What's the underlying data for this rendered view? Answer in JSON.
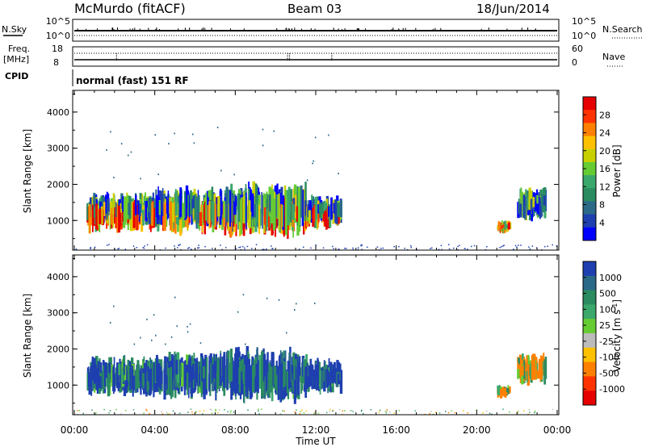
{
  "header": {
    "station": "McMurdo (fitACF)",
    "beam": "Beam 03",
    "date": "18/Jun/2014"
  },
  "top_panels": {
    "nsky_label": "N.Sky",
    "nsky_ticks": [
      "10^5",
      "10^0"
    ],
    "nsearch_label": "N.Search",
    "nsearch_ticks": [
      "10^5",
      "10^0"
    ],
    "freq_label": "Freq.",
    "freq_unit": "[MHz]",
    "freq_ticks": [
      "18",
      "8"
    ],
    "nave_label": "Nave",
    "nave_ticks": [
      "60",
      "0"
    ],
    "cpid_label": "CPID",
    "cpid_text": "normal (fast) 151 RF"
  },
  "chart_data": [
    {
      "type": "heatmap",
      "name": "power",
      "ylabel": "Slant Range [km]",
      "ylim": [
        180,
        4600
      ],
      "yticks": [
        1000,
        2000,
        3000,
        4000
      ],
      "xlim": [
        0,
        24
      ],
      "colorbar": {
        "label": "Power [dB]",
        "ticks": [
          "28",
          "24",
          "20",
          "16",
          "12",
          "8",
          "4"
        ],
        "colors": [
          "#e60000",
          "#ff3300",
          "#ff8000",
          "#ffc000",
          "#c8d000",
          "#66cc33",
          "#3aa86a",
          "#2a8a60",
          "#2a6a88",
          "#1e3fb0",
          "#0000ff"
        ]
      },
      "patches": [
        {
          "t0": 0.6,
          "t1": 4.0,
          "r0": 700,
          "r1": 1800,
          "level": "mixed"
        },
        {
          "t0": 4.0,
          "t1": 7.5,
          "r0": 650,
          "r1": 1900,
          "level": "mixed"
        },
        {
          "t0": 7.5,
          "t1": 11.5,
          "r0": 550,
          "r1": 2000,
          "level": "mixed"
        },
        {
          "t0": 11.5,
          "t1": 13.2,
          "r0": 800,
          "r1": 1700,
          "level": "mixed"
        },
        {
          "t0": 21.0,
          "t1": 21.6,
          "r0": 650,
          "r1": 1000,
          "level": "mixed"
        },
        {
          "t0": 22.0,
          "t1": 23.4,
          "r0": 1000,
          "r1": 1900,
          "level": "mixed"
        }
      ]
    },
    {
      "type": "heatmap",
      "name": "velocity",
      "ylabel": "Slant Range [km]",
      "ylim": [
        180,
        4600
      ],
      "yticks": [
        1000,
        2000,
        3000,
        4000
      ],
      "xlim": [
        0,
        24
      ],
      "xlabel": "Time UT",
      "xticks": [
        "00:00",
        "04:00",
        "08:00",
        "12:00",
        "16:00",
        "20:00",
        "00:00"
      ],
      "colorbar": {
        "label": "Velocity [m s^-1]",
        "ticks": [
          "1000",
          "500",
          "100",
          "25",
          "-25",
          "-100",
          "-500",
          "-1000"
        ],
        "colors": [
          "#1e3fb0",
          "#2a6a88",
          "#2a8a60",
          "#3aa86a",
          "#66cc33",
          "#bbbbbb",
          "#ffc000",
          "#ff8000",
          "#ff3300",
          "#e60000"
        ]
      },
      "patches": [
        {
          "t0": 0.6,
          "t1": 4.0,
          "r0": 700,
          "r1": 1800,
          "level": "mixed"
        },
        {
          "t0": 4.0,
          "t1": 7.5,
          "r0": 650,
          "r1": 1900,
          "level": "mixed"
        },
        {
          "t0": 7.5,
          "t1": 11.5,
          "r0": 550,
          "r1": 2000,
          "level": "mixed"
        },
        {
          "t0": 11.5,
          "t1": 13.2,
          "r0": 800,
          "r1": 1700,
          "level": "mixed"
        },
        {
          "t0": 21.0,
          "t1": 21.6,
          "r0": 650,
          "r1": 1000,
          "level": "mixed"
        },
        {
          "t0": 22.0,
          "t1": 23.4,
          "r0": 1000,
          "r1": 1900,
          "level": "mixed"
        }
      ]
    }
  ]
}
